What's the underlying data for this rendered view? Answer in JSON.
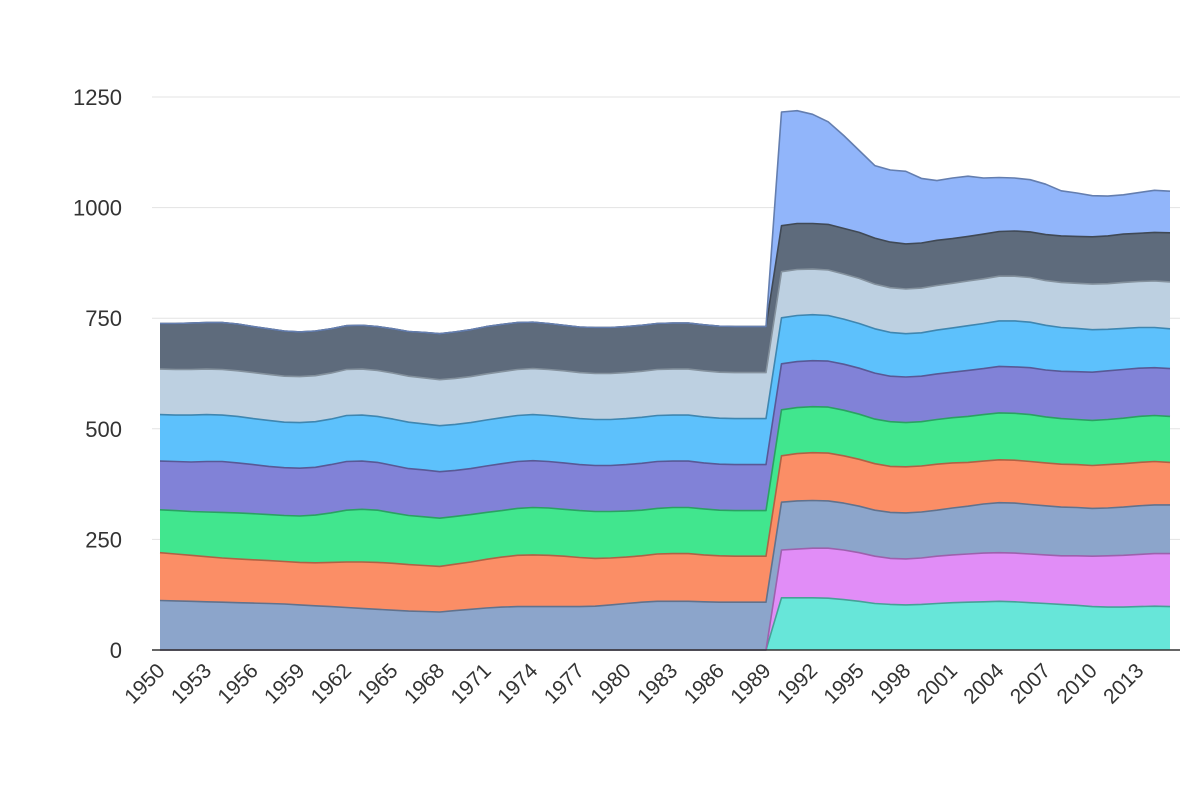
{
  "chart_data": {
    "type": "area",
    "stacked": true,
    "title": "",
    "xlabel": "",
    "ylabel": "",
    "x": [
      1950,
      1951,
      1952,
      1953,
      1954,
      1955,
      1956,
      1957,
      1958,
      1959,
      1960,
      1961,
      1962,
      1963,
      1964,
      1965,
      1966,
      1967,
      1968,
      1969,
      1970,
      1971,
      1972,
      1973,
      1974,
      1975,
      1976,
      1977,
      1978,
      1979,
      1980,
      1981,
      1982,
      1983,
      1984,
      1985,
      1986,
      1987,
      1988,
      1989,
      1990,
      1991,
      1992,
      1993,
      1994,
      1995,
      1996,
      1997,
      1998,
      1999,
      2000,
      2001,
      2002,
      2003,
      2004,
      2005,
      2006,
      2007,
      2008,
      2009,
      2010,
      2011,
      2012,
      2013,
      2014,
      2015
    ],
    "x_tick_labels": [
      "1950",
      "1953",
      "1956",
      "1959",
      "1962",
      "1965",
      "1968",
      "1971",
      "1974",
      "1977",
      "1980",
      "1983",
      "1986",
      "1989",
      "1992",
      "1995",
      "1998",
      "2001",
      "2004",
      "2007",
      "2010",
      "2013"
    ],
    "y_ticks": [
      0,
      250,
      500,
      750,
      1000,
      1250
    ],
    "ylim": [
      0,
      1300
    ],
    "grid": true,
    "legend": "none",
    "series": [
      {
        "color": "#64e6d8",
        "values": [
          0,
          0,
          0,
          0,
          0,
          0,
          0,
          0,
          0,
          0,
          0,
          0,
          0,
          0,
          0,
          0,
          0,
          0,
          0,
          0,
          0,
          0,
          0,
          0,
          0,
          0,
          0,
          0,
          0,
          0,
          0,
          0,
          0,
          0,
          0,
          0,
          0,
          0,
          0,
          0,
          118,
          118,
          118,
          117,
          114,
          110,
          105,
          103,
          102,
          103,
          105,
          107,
          108,
          109,
          110,
          109,
          107,
          105,
          103,
          101,
          98,
          97,
          97,
          98,
          99,
          98
        ]
      },
      {
        "color": "#e08bf7",
        "values": [
          0,
          0,
          0,
          0,
          0,
          0,
          0,
          0,
          0,
          0,
          0,
          0,
          0,
          0,
          0,
          0,
          0,
          0,
          0,
          0,
          0,
          0,
          0,
          0,
          0,
          0,
          0,
          0,
          0,
          0,
          0,
          0,
          0,
          0,
          0,
          0,
          0,
          0,
          0,
          0,
          108,
          110,
          112,
          113,
          112,
          110,
          107,
          104,
          104,
          105,
          107,
          108,
          109,
          110,
          110,
          110,
          110,
          110,
          110,
          112,
          114,
          116,
          117,
          118,
          119,
          120
        ]
      },
      {
        "color": "#8aa3ca",
        "values": [
          112,
          111,
          110,
          109,
          108,
          107,
          106,
          105,
          104,
          102,
          100,
          98,
          96,
          94,
          92,
          90,
          88,
          87,
          86,
          89,
          92,
          95,
          97,
          98,
          98,
          98,
          98,
          98,
          99,
          102,
          105,
          108,
          110,
          110,
          110,
          109,
          108,
          108,
          108,
          108,
          108,
          109,
          108,
          107,
          106,
          105,
          104,
          104,
          104,
          104,
          104,
          106,
          108,
          111,
          113,
          113,
          112,
          111,
          110,
          109,
          108,
          108,
          109,
          110,
          110,
          110
        ]
      },
      {
        "color": "#fb8c63",
        "values": [
          108,
          106,
          104,
          102,
          100,
          99,
          98,
          97,
          96,
          96,
          97,
          100,
          103,
          105,
          106,
          106,
          105,
          104,
          103,
          105,
          107,
          110,
          113,
          116,
          117,
          116,
          114,
          111,
          108,
          106,
          105,
          105,
          107,
          108,
          108,
          106,
          105,
          104,
          104,
          104,
          105,
          107,
          108,
          108,
          107,
          106,
          105,
          104,
          104,
          104,
          104,
          102,
          99,
          97,
          97,
          97,
          97,
          97,
          97,
          97,
          97,
          98,
          98,
          98,
          98,
          96
        ]
      },
      {
        "color": "#3de68c",
        "values": [
          97,
          98,
          99,
          101,
          103,
          104,
          104,
          104,
          104,
          105,
          108,
          112,
          117,
          119,
          118,
          114,
          111,
          110,
          109,
          108,
          107,
          106,
          105,
          106,
          107,
          107,
          106,
          106,
          106,
          105,
          104,
          103,
          103,
          104,
          104,
          104,
          103,
          103,
          103,
          103,
          104,
          104,
          104,
          104,
          103,
          102,
          101,
          101,
          100,
          100,
          101,
          102,
          104,
          105,
          106,
          106,
          106,
          104,
          103,
          102,
          102,
          102,
          103,
          104,
          104,
          104
        ]
      },
      {
        "color": "#7e7fd6",
        "values": [
          110,
          111,
          112,
          114,
          115,
          113,
          111,
          109,
          108,
          108,
          108,
          109,
          110,
          109,
          108,
          107,
          106,
          106,
          105,
          104,
          104,
          105,
          106,
          106,
          106,
          105,
          105,
          104,
          104,
          104,
          105,
          106,
          106,
          105,
          105,
          104,
          104,
          104,
          104,
          104,
          104,
          104,
          104,
          104,
          104,
          104,
          104,
          103,
          103,
          103,
          103,
          103,
          104,
          104,
          105,
          105,
          106,
          106,
          107,
          108,
          109,
          110,
          110,
          109,
          108,
          108
        ]
      },
      {
        "color": "#5ac0fc",
        "values": [
          105,
          105,
          106,
          106,
          105,
          105,
          104,
          104,
          103,
          103,
          103,
          103,
          104,
          104,
          104,
          105,
          105,
          104,
          104,
          104,
          104,
          104,
          104,
          104,
          104,
          104,
          104,
          104,
          104,
          104,
          104,
          104,
          104,
          104,
          104,
          104,
          104,
          104,
          104,
          104,
          104,
          104,
          104,
          103,
          102,
          101,
          100,
          99,
          98,
          98,
          99,
          100,
          101,
          102,
          103,
          104,
          103,
          101,
          99,
          98,
          96,
          94,
          93,
          92,
          91,
          90
        ]
      },
      {
        "color": "#bccfe0",
        "values": [
          103,
          103,
          103,
          103,
          103,
          103,
          104,
          104,
          104,
          104,
          104,
          104,
          104,
          104,
          104,
          104,
          104,
          104,
          104,
          104,
          104,
          104,
          104,
          104,
          104,
          104,
          104,
          104,
          104,
          104,
          104,
          104,
          104,
          104,
          104,
          104,
          104,
          104,
          104,
          104,
          104,
          104,
          103,
          103,
          102,
          102,
          101,
          101,
          101,
          101,
          101,
          101,
          101,
          101,
          101,
          101,
          101,
          101,
          102,
          102,
          103,
          103,
          104,
          104,
          105,
          106
        ]
      },
      {
        "color": "#5b6879",
        "values": [
          103,
          104,
          105,
          105,
          106,
          106,
          104,
          103,
          102,
          101,
          101,
          100,
          99,
          99,
          99,
          100,
          101,
          103,
          104,
          105,
          106,
          107,
          107,
          106,
          105,
          104,
          103,
          103,
          104,
          104,
          104,
          104,
          104,
          104,
          104,
          104,
          104,
          104,
          104,
          104,
          104,
          104,
          103,
          103,
          103,
          104,
          104,
          103,
          102,
          102,
          102,
          101,
          101,
          101,
          101,
          102,
          103,
          104,
          105,
          106,
          107,
          108,
          109,
          109,
          110,
          111
        ]
      },
      {
        "color": "#8fb4fa",
        "values": [
          0,
          0,
          0,
          0,
          0,
          0,
          0,
          0,
          0,
          0,
          0,
          0,
          0,
          0,
          0,
          0,
          0,
          0,
          0,
          0,
          0,
          0,
          0,
          0,
          0,
          0,
          0,
          0,
          0,
          0,
          0,
          0,
          0,
          0,
          0,
          0,
          0,
          0,
          0,
          0,
          257,
          255,
          247,
          232,
          210,
          185,
          164,
          163,
          164,
          146,
          135,
          137,
          136,
          127,
          122,
          120,
          118,
          114,
          102,
          98,
          93,
          90,
          89,
          92,
          95,
          94
        ]
      }
    ]
  }
}
